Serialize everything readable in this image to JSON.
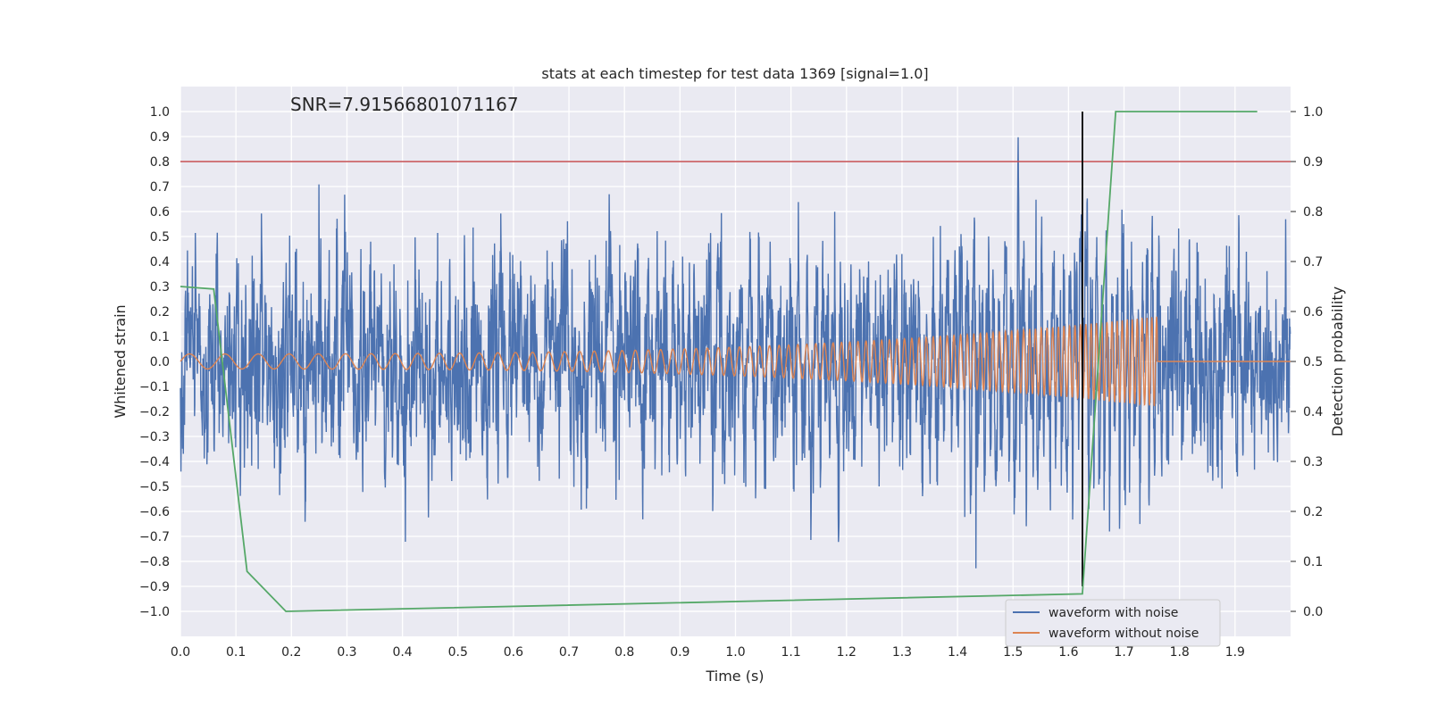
{
  "chart_data": {
    "type": "line",
    "title": "stats at each timestep for test data 1369 [signal=1.0]",
    "xlabel": "Time (s)",
    "ylabel": "Whitened strain",
    "ylabel_right": "Detection probability",
    "annotation": "SNR=7.91566801071167",
    "xlim": [
      0.0,
      2.0
    ],
    "ylim": [
      -1.1,
      1.1
    ],
    "ylim_right": [
      -0.05,
      1.05
    ],
    "x_ticks": [
      "0.0",
      "0.1",
      "0.2",
      "0.3",
      "0.4",
      "0.5",
      "0.6",
      "0.7",
      "0.8",
      "0.9",
      "1.0",
      "1.1",
      "1.2",
      "1.3",
      "1.4",
      "1.5",
      "1.6",
      "1.7",
      "1.8",
      "1.9"
    ],
    "y_ticks": [
      "1.0",
      "0.9",
      "0.8",
      "0.7",
      "0.6",
      "0.5",
      "0.4",
      "0.3",
      "0.2",
      "0.1",
      "0.0",
      "−0.1",
      "−0.2",
      "−0.3",
      "−0.4",
      "−0.5",
      "−0.6",
      "−0.7",
      "−0.8",
      "−0.9",
      "−1.0"
    ],
    "y_ticks_right": [
      "1.0",
      "0.9",
      "0.8",
      "0.7",
      "0.6",
      "0.5",
      "0.4",
      "0.3",
      "0.2",
      "0.1",
      "0.0"
    ],
    "grid": true,
    "legend_position": "bottom-right",
    "threshold": {
      "y": 0.8,
      "color": "#c44e52"
    },
    "event_marker": {
      "x": 1.625,
      "y_range": [
        -0.9,
        1.0
      ],
      "color": "#000000"
    },
    "series": [
      {
        "name": "waveform with noise",
        "color": "#4c72b0",
        "axis": "left",
        "sample_rate": 2048,
        "amplitude_std": 0.23,
        "envelope": [
          -1.0,
          1.0
        ]
      },
      {
        "name": "waveform without noise",
        "color": "#dd8452",
        "axis": "left",
        "chirp": {
          "t_start": 0.0,
          "t_end": 1.76,
          "f_start": 15,
          "f_end": 90,
          "amp_start": 0.03,
          "amp_end": 0.18
        }
      },
      {
        "name": "detection probability",
        "color": "#55a868",
        "axis": "right",
        "x": [
          0.0,
          0.06,
          0.12,
          0.19,
          1.625,
          1.685,
          1.94
        ],
        "y": [
          0.65,
          0.645,
          0.08,
          0.0,
          0.035,
          1.0,
          1.0
        ]
      }
    ]
  }
}
